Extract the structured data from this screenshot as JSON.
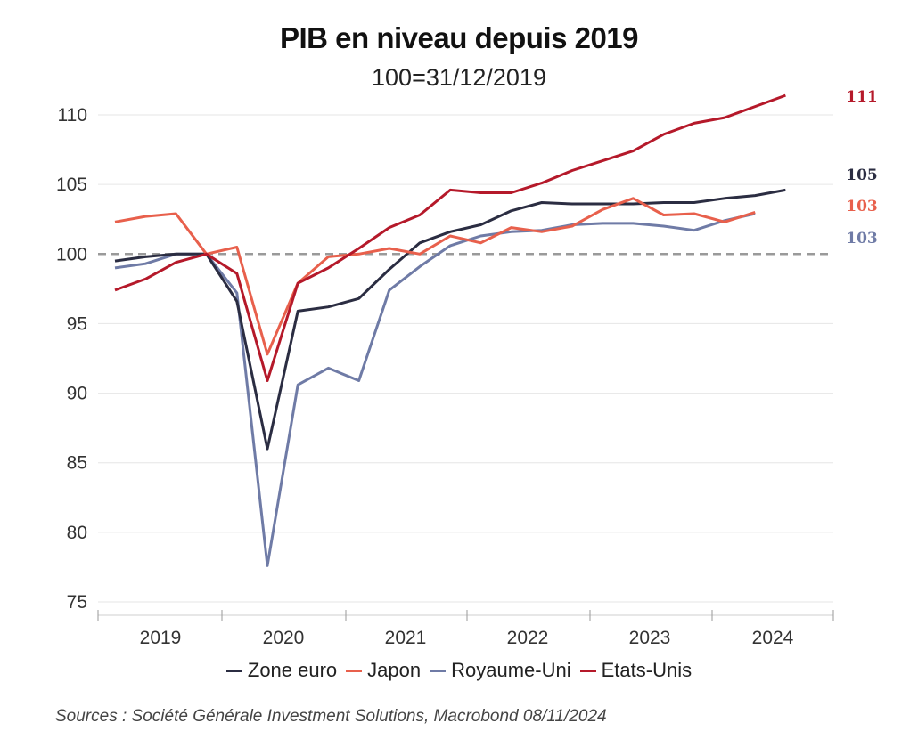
{
  "chart_data": {
    "type": "line",
    "title": "PIB en niveau depuis 2019",
    "subtitle": "100=31/12/2019",
    "xlabel": "",
    "ylabel": "",
    "ylim": [
      75,
      110
    ],
    "yticks": [
      75,
      80,
      85,
      90,
      95,
      100,
      105,
      110
    ],
    "reference_line": 100,
    "x_tick_labels": [
      "2019",
      "2020",
      "2021",
      "2022",
      "2023",
      "2024"
    ],
    "x": [
      "2019-T1",
      "2019-T2",
      "2019-T3",
      "2019-T4",
      "2020-T1",
      "2020-T2",
      "2020-T3",
      "2020-T4",
      "2021-T1",
      "2021-T2",
      "2021-T3",
      "2021-T4",
      "2022-T1",
      "2022-T2",
      "2022-T3",
      "2022-T4",
      "2023-T1",
      "2023-T2",
      "2023-T3",
      "2023-T4",
      "2024-T1",
      "2024-T2",
      "2024-T3"
    ],
    "series": [
      {
        "name": "Zone euro",
        "color": "#2b2d42",
        "end_label": "105",
        "values": [
          99.5,
          99.8,
          100.0,
          100.0,
          96.6,
          86.0,
          95.9,
          96.2,
          96.8,
          98.9,
          100.8,
          101.6,
          102.1,
          103.1,
          103.7,
          103.6,
          103.6,
          103.6,
          103.7,
          103.7,
          104.0,
          104.2,
          104.6
        ]
      },
      {
        "name": "Japon",
        "color": "#e8604c",
        "end_label": "103",
        "values": [
          102.3,
          102.7,
          102.9,
          100.0,
          100.5,
          92.8,
          97.9,
          99.8,
          100.0,
          100.4,
          100.0,
          101.3,
          100.8,
          101.9,
          101.6,
          102.0,
          103.2,
          104.0,
          102.8,
          102.9,
          102.3,
          103.0,
          null
        ]
      },
      {
        "name": "Royaume-Uni",
        "color": "#6f7ba6",
        "end_label": "103",
        "values": [
          99.0,
          99.3,
          100.0,
          100.0,
          97.2,
          77.6,
          90.6,
          91.8,
          90.9,
          97.4,
          99.1,
          100.6,
          101.3,
          101.6,
          101.7,
          102.1,
          102.2,
          102.2,
          102.0,
          101.7,
          102.4,
          102.9,
          null
        ]
      },
      {
        "name": "Etats-Unis",
        "color": "#b5192a",
        "end_label": "111",
        "values": [
          97.4,
          98.2,
          99.4,
          100.0,
          98.6,
          90.9,
          97.9,
          99.0,
          100.4,
          101.9,
          102.8,
          104.6,
          104.4,
          104.4,
          105.1,
          106.0,
          106.7,
          107.4,
          108.6,
          109.4,
          109.8,
          110.6,
          111.4
        ]
      }
    ],
    "legend": "bottom-center",
    "grid": true
  },
  "source": "Sources : Société Générale Investment Solutions, Macrobond 08/11/2024"
}
